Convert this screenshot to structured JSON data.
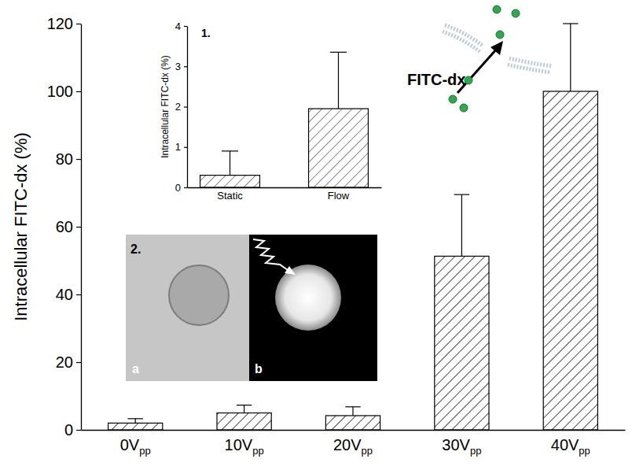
{
  "chart_data": [
    {
      "type": "bar",
      "categories": [
        "0Vpp",
        "10Vpp",
        "20Vpp",
        "30Vpp",
        "40Vpp"
      ],
      "values": [
        2,
        5,
        4.2,
        51.3,
        100
      ],
      "errors": [
        1.3,
        2.3,
        2.6,
        18.2,
        20
      ],
      "ylim": [
        0,
        120
      ],
      "yticks": [
        0,
        20,
        40,
        60,
        80,
        100,
        120
      ],
      "y_label": "Intracellular FITC-dx (%)",
      "color": "#000000",
      "annotations": [
        "FITC-dx",
        "2.",
        "a",
        "b"
      ]
    },
    {
      "type": "bar",
      "panel_label": "1.",
      "categories": [
        "Static",
        "Flow"
      ],
      "values": [
        0.3,
        1.95
      ],
      "errors": [
        0.6,
        1.4
      ],
      "ylim": [
        0,
        4
      ],
      "yticks": [
        0,
        1,
        2,
        3,
        4
      ],
      "y_label": "Intracellular FITC-dx (%)",
      "color": "#555555"
    }
  ]
}
